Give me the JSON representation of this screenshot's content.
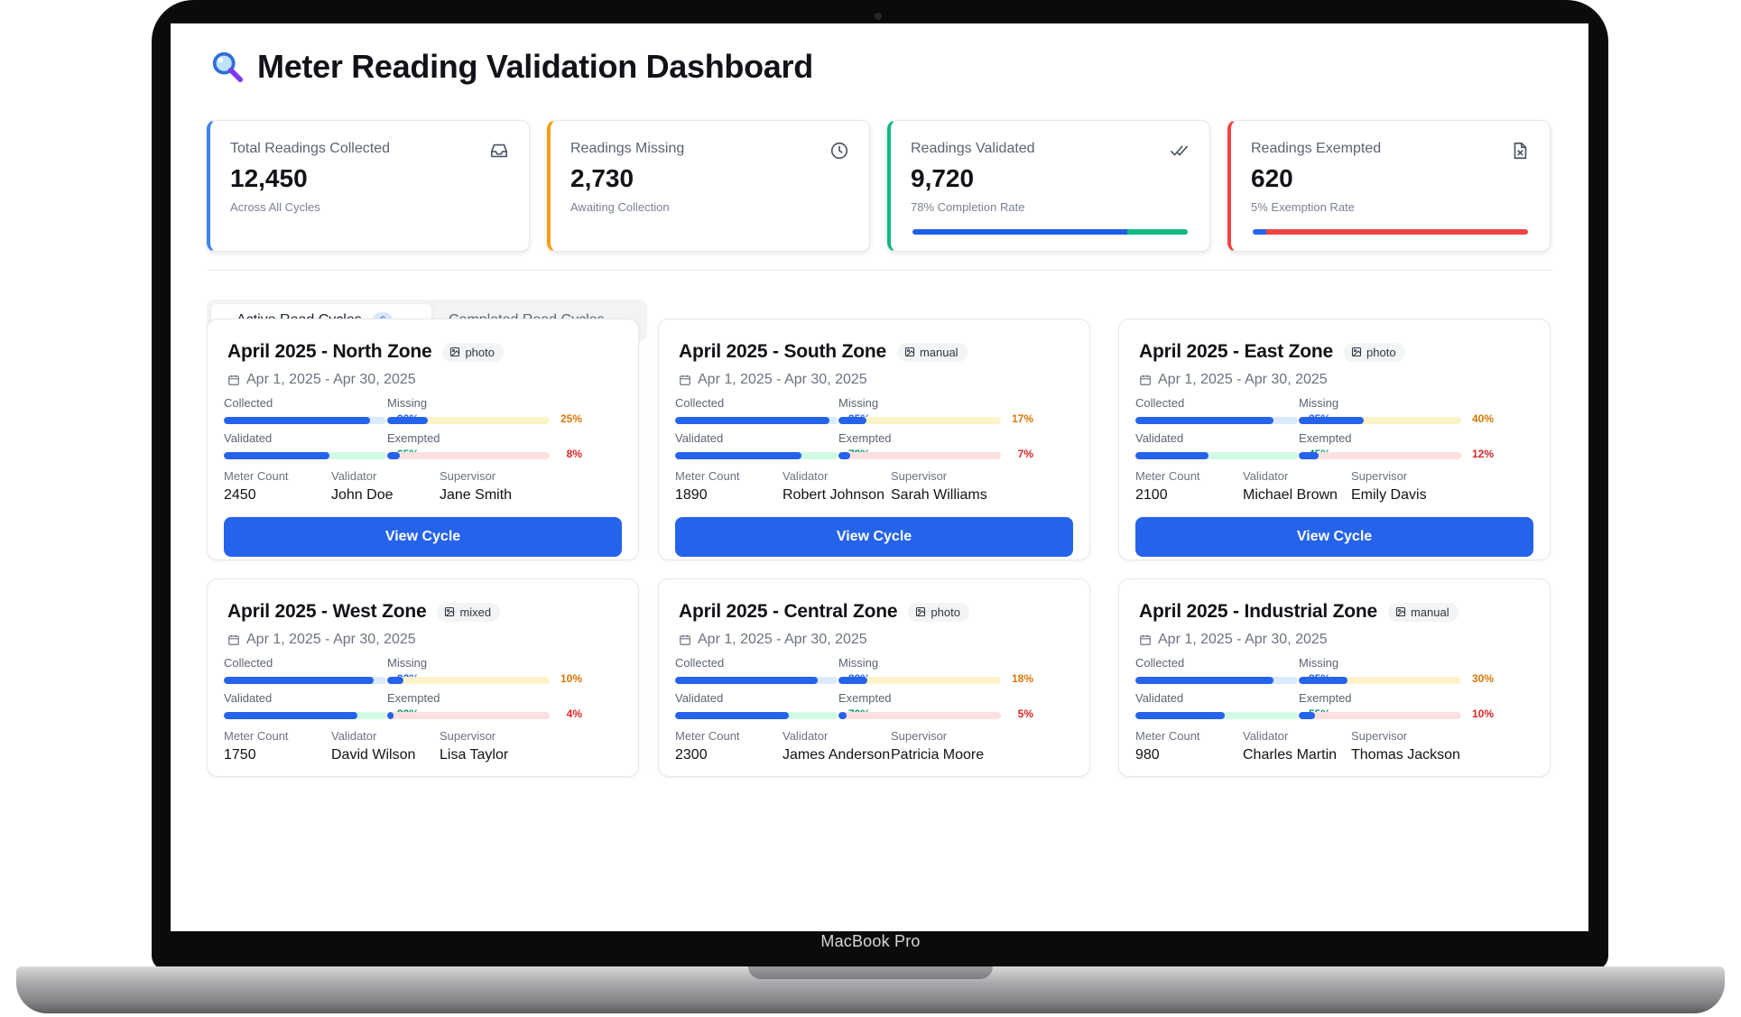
{
  "device": {
    "label": "MacBook Pro"
  },
  "header": {
    "title": "Meter Reading Validation Dashboard",
    "icon": "magnifying-glass-icon"
  },
  "stats": [
    {
      "label": "Total Readings Collected",
      "value": "12,450",
      "sub": "Across All Cycles",
      "icon": "inbox-icon",
      "accent": "#3b82f6"
    },
    {
      "label": "Readings Missing",
      "value": "2,730",
      "sub": "Awaiting Collection",
      "icon": "clock-icon",
      "accent": "#f59e0b"
    },
    {
      "label": "Readings Validated",
      "value": "9,720",
      "sub": "78% Completion Rate",
      "icon": "double-check-icon",
      "accent": "#10b981",
      "bar_fraction": 0.78
    },
    {
      "label": "Readings Exempted",
      "value": "620",
      "sub": "5% Exemption Rate",
      "icon": "file-x-icon",
      "accent": "#ef4444",
      "bar_fraction": 0.05
    }
  ],
  "tabs": {
    "active": {
      "label": "Active Read Cycles",
      "count": "6"
    },
    "inactive": {
      "label": "Completed Read Cycles"
    }
  },
  "labels": {
    "collected": "Collected",
    "missing": "Missing",
    "validated": "Validated",
    "exempted": "Exempted",
    "meter_count": "Meter Count",
    "validator": "Validator",
    "supervisor": "Supervisor",
    "view_button": "View Cycle"
  },
  "colors": {
    "collected": "#2563eb",
    "collected_track": "#dbeafe",
    "missing": "#d97706",
    "missing_track": "#fdf3c9",
    "validated": "#059669",
    "validated_track": "#d1fae5",
    "exempted": "#dc2626",
    "exempted_track": "#fde0e0"
  },
  "cycles": [
    {
      "name": "April 2025 - North Zone",
      "type": "photo",
      "dates": "Apr 1, 2025 - Apr 30, 2025",
      "collected": 90,
      "missing": 25,
      "validated": 65,
      "exempted": 8,
      "meter_count": "2450",
      "validator": "John Doe",
      "supervisor": "Jane Smith"
    },
    {
      "name": "April 2025 - South Zone",
      "type": "manual",
      "dates": "Apr 1, 2025 - Apr 30, 2025",
      "collected": 95,
      "missing": 17,
      "validated": 78,
      "exempted": 7,
      "meter_count": "1890",
      "validator": "Robert Johnson",
      "supervisor": "Sarah Williams"
    },
    {
      "name": "April 2025 - East Zone",
      "type": "photo",
      "dates": "Apr 1, 2025 - Apr 30, 2025",
      "collected": 85,
      "missing": 40,
      "validated": 45,
      "exempted": 12,
      "meter_count": "2100",
      "validator": "Michael Brown",
      "supervisor": "Emily Davis"
    },
    {
      "name": "April 2025 - West Zone",
      "type": "mixed",
      "dates": "Apr 1, 2025 - Apr 30, 2025",
      "collected": 92,
      "missing": 10,
      "validated": 82,
      "exempted": 4,
      "meter_count": "1750",
      "validator": "David Wilson",
      "supervisor": "Lisa Taylor"
    },
    {
      "name": "April 2025 - Central Zone",
      "type": "photo",
      "dates": "Apr 1, 2025 - Apr 30, 2025",
      "collected": 88,
      "missing": 18,
      "validated": 70,
      "exempted": 5,
      "meter_count": "2300",
      "validator": "James Anderson",
      "supervisor": "Patricia Moore"
    },
    {
      "name": "April 2025 - Industrial Zone",
      "type": "manual",
      "dates": "Apr 1, 2025 - Apr 30, 2025",
      "collected": 85,
      "missing": 30,
      "validated": 55,
      "exempted": 10,
      "meter_count": "980",
      "validator": "Charles Martin",
      "supervisor": "Thomas Jackson"
    }
  ]
}
